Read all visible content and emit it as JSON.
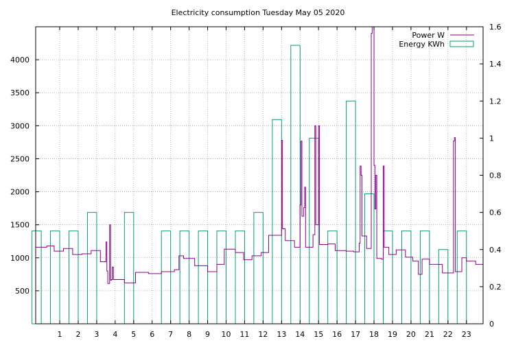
{
  "chart_data": {
    "type": "line",
    "title": "Electricity consumption Tuesday May 05 2020",
    "xlabel": "",
    "ylabel": "",
    "y2label": "",
    "grid": true,
    "legend_placement": "top-right",
    "x_range": [
      -0.3,
      23.9
    ],
    "y_range": [
      0,
      4500
    ],
    "y2_range": [
      0,
      1.6
    ],
    "x_ticks": [
      1,
      2,
      3,
      4,
      5,
      6,
      7,
      8,
      9,
      10,
      11,
      12,
      13,
      14,
      15,
      16,
      17,
      18,
      19,
      20,
      21,
      22,
      23
    ],
    "y_ticks": [
      500,
      1000,
      1500,
      2000,
      2500,
      3000,
      3500,
      4000
    ],
    "y2_ticks": [
      0,
      0.2,
      0.4,
      0.6,
      0.8,
      1,
      1.2,
      1.4,
      1.6
    ],
    "colors": {
      "power": "#8b008b",
      "energy": "#009e73",
      "grid": "#a0a0a0"
    },
    "series": [
      {
        "name": "Power W",
        "axis": "left",
        "style": "steps",
        "points": [
          [
            -0.3,
            1160
          ],
          [
            0,
            1160
          ],
          [
            0.3,
            1180
          ],
          [
            0.7,
            1100
          ],
          [
            1.2,
            1140
          ],
          [
            1.7,
            1050
          ],
          [
            2.2,
            1060
          ],
          [
            2.7,
            1110
          ],
          [
            3.2,
            940
          ],
          [
            3.5,
            1240
          ],
          [
            3.55,
            800
          ],
          [
            3.6,
            610
          ],
          [
            3.7,
            1500
          ],
          [
            3.75,
            660
          ],
          [
            3.8,
            670
          ],
          [
            3.85,
            860
          ],
          [
            3.9,
            670
          ],
          [
            4.5,
            620
          ],
          [
            5.1,
            780
          ],
          [
            5.8,
            760
          ],
          [
            6.5,
            790
          ],
          [
            7.2,
            820
          ],
          [
            7.45,
            1030
          ],
          [
            7.7,
            990
          ],
          [
            8.3,
            880
          ],
          [
            9.0,
            790
          ],
          [
            9.5,
            900
          ],
          [
            9.9,
            1130
          ],
          [
            10.5,
            1080
          ],
          [
            10.95,
            970
          ],
          [
            11.4,
            1030
          ],
          [
            11.9,
            1080
          ],
          [
            12.3,
            1340
          ],
          [
            12.9,
            1340
          ],
          [
            13.0,
            2780
          ],
          [
            13.05,
            1440
          ],
          [
            13.2,
            1260
          ],
          [
            13.7,
            1160
          ],
          [
            14.0,
            1800
          ],
          [
            14.05,
            2770
          ],
          [
            14.1,
            1630
          ],
          [
            14.2,
            1760
          ],
          [
            14.25,
            2070
          ],
          [
            14.3,
            1160
          ],
          [
            14.7,
            1350
          ],
          [
            14.8,
            3000
          ],
          [
            14.85,
            1500
          ],
          [
            15.0,
            3000
          ],
          [
            15.05,
            1200
          ],
          [
            15.5,
            1210
          ],
          [
            15.9,
            1110
          ],
          [
            16.5,
            1100
          ],
          [
            16.9,
            1090
          ],
          [
            17.2,
            1220
          ],
          [
            17.25,
            2390
          ],
          [
            17.3,
            2250
          ],
          [
            17.35,
            1330
          ],
          [
            17.6,
            1140
          ],
          [
            17.85,
            4400
          ],
          [
            17.9,
            4500
          ],
          [
            18.0,
            2400
          ],
          [
            18.05,
            1740
          ],
          [
            18.1,
            2250
          ],
          [
            18.15,
            990
          ],
          [
            18.4,
            980
          ],
          [
            18.5,
            2390
          ],
          [
            18.55,
            1160
          ],
          [
            18.8,
            1050
          ],
          [
            19.2,
            1120
          ],
          [
            19.7,
            1010
          ],
          [
            20.1,
            950
          ],
          [
            20.4,
            750
          ],
          [
            20.6,
            980
          ],
          [
            21.0,
            900
          ],
          [
            21.7,
            770
          ],
          [
            22.3,
            2770
          ],
          [
            22.35,
            2820
          ],
          [
            22.4,
            790
          ],
          [
            22.6,
            790
          ],
          [
            22.75,
            1000
          ],
          [
            23.0,
            950
          ],
          [
            23.5,
            900
          ],
          [
            23.9,
            900
          ]
        ]
      },
      {
        "name": "Energy KWh",
        "axis": "right",
        "style": "boxes",
        "bars": [
          [
            0,
            0.5
          ],
          [
            1,
            0.5
          ],
          [
            2,
            0.5
          ],
          [
            3,
            0.6
          ],
          [
            4,
            0
          ],
          [
            5,
            0.6
          ],
          [
            6,
            0
          ],
          [
            7,
            0.5
          ],
          [
            8,
            0.5
          ],
          [
            9,
            0.5
          ],
          [
            10,
            0.5
          ],
          [
            11,
            0.5
          ],
          [
            12,
            0.6
          ],
          [
            13,
            1.1
          ],
          [
            14,
            1.5
          ],
          [
            15,
            1.0
          ],
          [
            16,
            0.5
          ],
          [
            17,
            1.2
          ],
          [
            18,
            0.7
          ],
          [
            19,
            0.5
          ],
          [
            20,
            0.5
          ],
          [
            21,
            0.5
          ],
          [
            22,
            0.4
          ],
          [
            23,
            0.5
          ]
        ]
      }
    ]
  }
}
